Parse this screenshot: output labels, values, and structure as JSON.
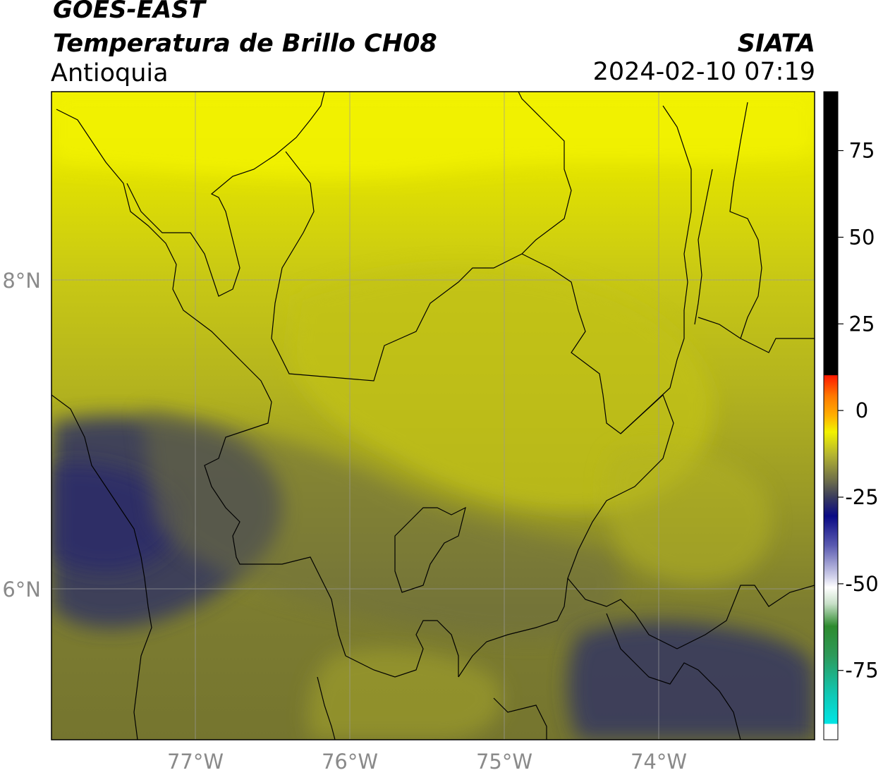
{
  "header": {
    "satellite": "GOES-EAST",
    "product": "Temperatura de Brillo CH08",
    "region": "Antioquia",
    "organization": "SIATA",
    "datetime": "2024-02-10 07:19"
  },
  "map": {
    "lon_range": [
      -77.93,
      -73.01
    ],
    "lat_range": [
      5.03,
      9.24
    ],
    "lon_ticks": [
      {
        "value": -77,
        "label": "77°W"
      },
      {
        "value": -76,
        "label": "76°W"
      },
      {
        "value": -75,
        "label": "75°W"
      },
      {
        "value": -74,
        "label": "74°W"
      }
    ],
    "lat_ticks": [
      {
        "value": 8,
        "label": "8°N"
      },
      {
        "value": 6,
        "label": "6°N"
      }
    ],
    "gridlines": true
  },
  "colorbar": {
    "range": [
      -95,
      92
    ],
    "ticks": [
      {
        "value": 75,
        "label": "75"
      },
      {
        "value": 50,
        "label": "50"
      },
      {
        "value": 25,
        "label": "25"
      },
      {
        "value": 0,
        "label": "0"
      },
      {
        "value": -25,
        "label": "-25"
      },
      {
        "value": -50,
        "label": "-50"
      },
      {
        "value": -75,
        "label": "-75"
      }
    ],
    "colors": {
      "black": "#000000",
      "red": "#ff1a00",
      "orange": "#ff9900",
      "yellow": "#f2f200",
      "olive": "#8e8e2e",
      "dark_slate": "#3b3d5c",
      "navy": "#0a0a85",
      "white": "#ffffff",
      "green": "#2e8b2e",
      "cyan": "#00e5e5"
    }
  }
}
